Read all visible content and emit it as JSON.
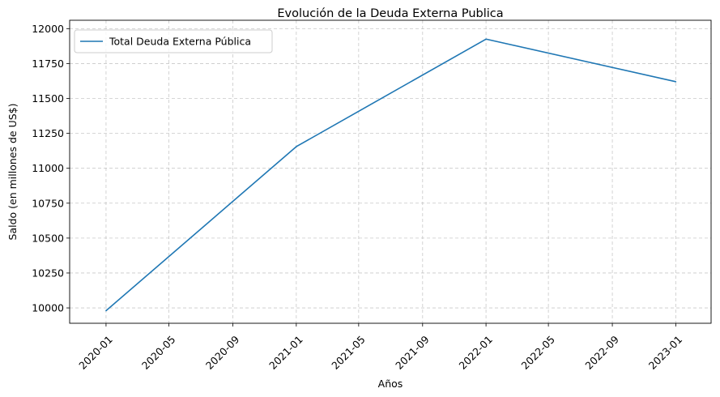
{
  "chart_data": {
    "type": "line",
    "title": "Evolución de la Deuda Externa Publica",
    "xlabel": "Años",
    "ylabel": "Saldo (en millones de US$)",
    "x_ticks": [
      "2020-01",
      "2020-05",
      "2020-09",
      "2021-01",
      "2021-05",
      "2021-09",
      "2022-01",
      "2022-05",
      "2022-09",
      "2023-01"
    ],
    "y_ticks": [
      10000,
      10250,
      10500,
      10750,
      11000,
      11250,
      11500,
      11750,
      12000
    ],
    "ylim": [
      9890,
      12060
    ],
    "xlim": [
      "2019-10-23",
      "2023-03-10"
    ],
    "grid": true,
    "legend_position": "top-left",
    "series": [
      {
        "name": "Total Deuda Externa Pública",
        "color": "#1f77b4",
        "x": [
          "2020-01-01",
          "2021-01-01",
          "2022-01-01",
          "2023-01-01"
        ],
        "y": [
          9980,
          11155,
          11925,
          11620
        ]
      }
    ]
  }
}
